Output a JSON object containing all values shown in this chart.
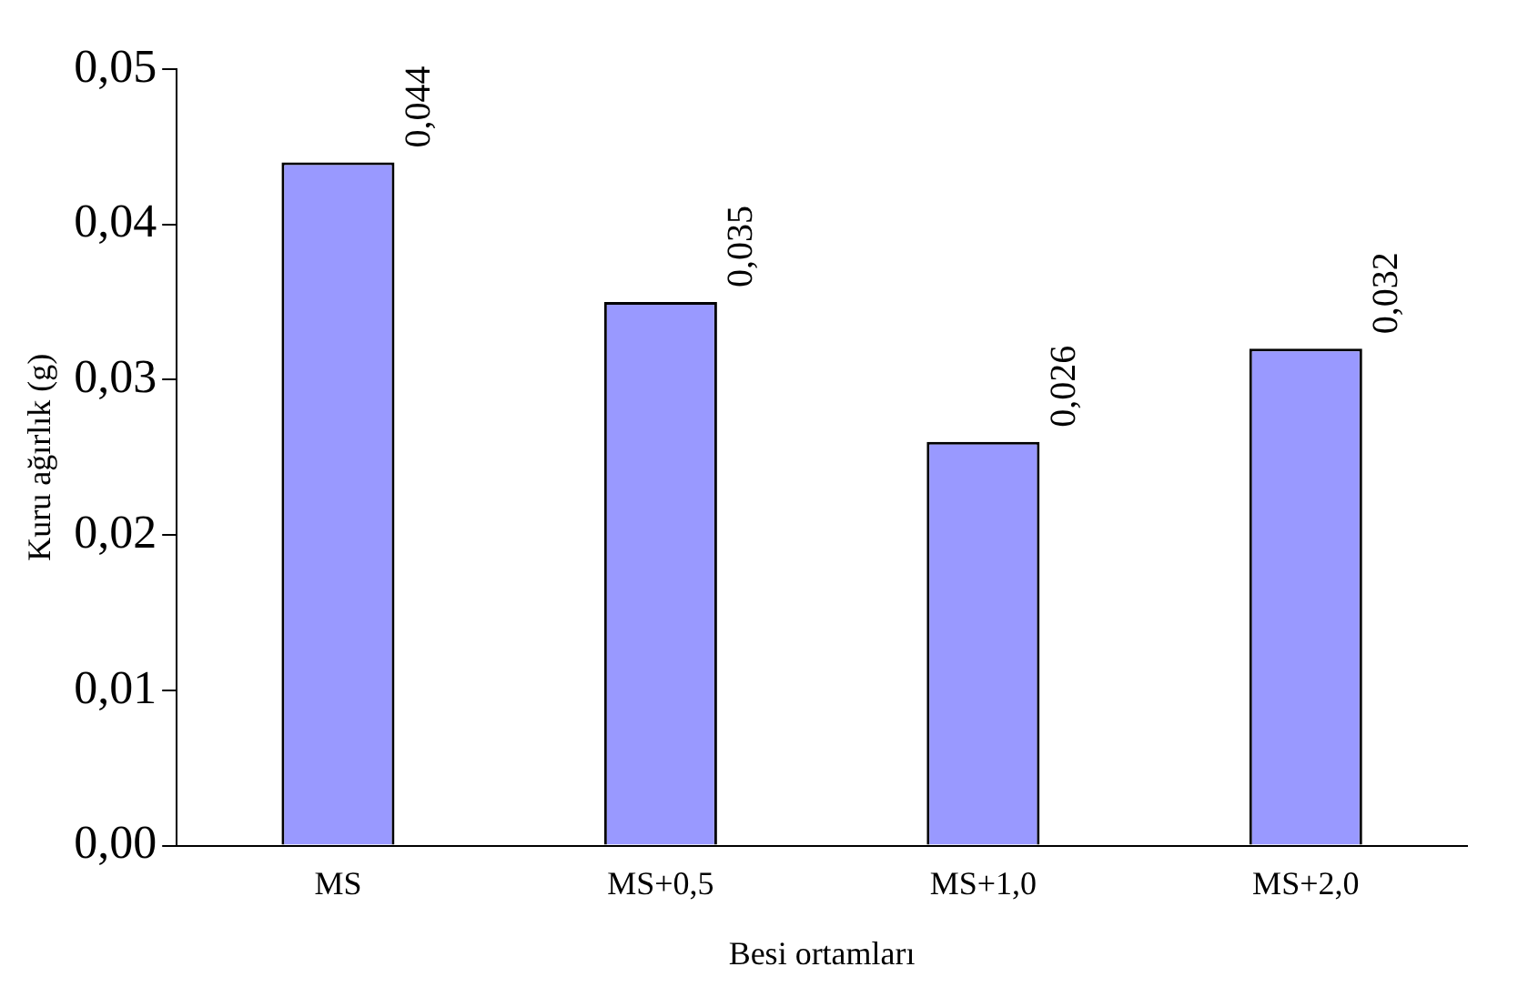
{
  "chart_data": {
    "type": "bar",
    "xlabel": "Besi ortamları",
    "ylabel": "Kuru ağırlık (g)",
    "categories": [
      "MS",
      "MS+0,5",
      "MS+1,0",
      "MS+2,0"
    ],
    "values": [
      0.044,
      0.035,
      0.026,
      0.032
    ],
    "value_labels": [
      "0,044",
      "0,035",
      "0,026",
      "0,032"
    ],
    "color": "#9999ff",
    "ylim": [
      0,
      0.05
    ],
    "yticks": [
      {
        "value": 0,
        "label": "0,00"
      },
      {
        "value": 0.01,
        "label": "0,01"
      },
      {
        "value": 0.02,
        "label": "0,02"
      },
      {
        "value": 0.03,
        "label": "0,03"
      },
      {
        "value": 0.04,
        "label": "0,04"
      },
      {
        "value": 0.05,
        "label": "0,05"
      }
    ],
    "grid": false,
    "legend": false
  }
}
